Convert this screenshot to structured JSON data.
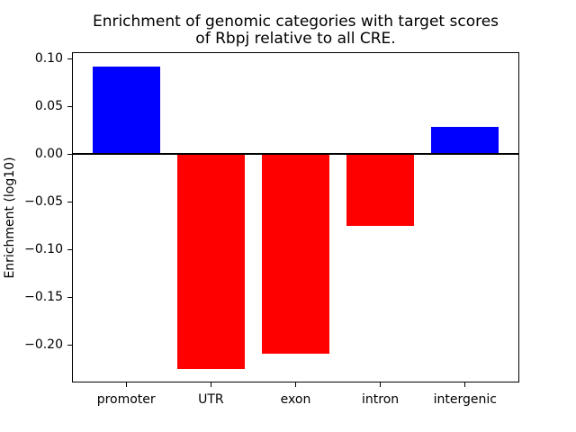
{
  "title": {
    "line1": "Enrichment of genomic categories with target scores",
    "line2": "of Rbpj relative to all CRE."
  },
  "chart_data": {
    "type": "bar",
    "title": "Enrichment of genomic categories with target scores\nof Rbpj relative to all CRE.",
    "xlabel": "",
    "ylabel": "Enrichment (log10)",
    "categories": [
      "promoter",
      "UTR",
      "exon",
      "intron",
      "intergenic"
    ],
    "values": [
      0.092,
      -0.225,
      -0.209,
      -0.075,
      0.028
    ],
    "positive_color": "#0000ff",
    "negative_color": "#ff0000",
    "bar_colors": [
      "#0000ff",
      "#ff0000",
      "#ff0000",
      "#ff0000",
      "#0000ff"
    ],
    "bar_width": 0.8,
    "ylim": [
      -0.2396,
      0.1066
    ],
    "xlim": [
      -0.64,
      4.64
    ],
    "yticks": [
      0.1,
      0.05,
      0.0,
      -0.05,
      -0.1,
      -0.15,
      -0.2
    ],
    "ytick_labels": [
      "0.10",
      "0.05",
      "0.00",
      "−0.05",
      "−0.10",
      "−0.15",
      "−0.20"
    ],
    "zero_line": true,
    "grid": false,
    "legend": null,
    "background_color": "#ffffff",
    "spine_color": "#000000"
  }
}
